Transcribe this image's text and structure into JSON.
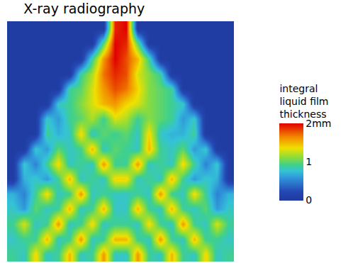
{
  "chart_data": {
    "type": "heatmap",
    "title": "X-ray radiography",
    "tick_labels": false,
    "cells": [
      [
        0.05,
        0.05,
        0.05,
        0.05,
        0.05,
        0.05,
        0.05,
        0.05,
        0.05,
        1.9,
        2.0,
        0.05,
        0.05,
        0.05,
        0.05,
        0.05,
        0.05,
        0.05,
        0.05,
        0.05
      ],
      [
        0.05,
        0.05,
        0.05,
        0.05,
        0.05,
        0.05,
        0.05,
        0.05,
        1.0,
        2.0,
        1.9,
        1.0,
        0.05,
        0.05,
        0.05,
        0.05,
        0.05,
        0.05,
        0.05,
        0.05
      ],
      [
        0.05,
        0.05,
        0.05,
        0.05,
        0.05,
        0.05,
        0.05,
        0.9,
        1.6,
        2.0,
        1.8,
        1.5,
        0.9,
        0.05,
        0.05,
        0.05,
        0.05,
        0.05,
        0.05,
        0.05
      ],
      [
        0.05,
        0.05,
        0.05,
        0.05,
        0.05,
        0.05,
        0.9,
        1.2,
        1.7,
        1.9,
        1.8,
        1.3,
        1.1,
        0.9,
        0.05,
        0.05,
        0.05,
        0.05,
        0.05,
        0.05
      ],
      [
        0.05,
        0.05,
        0.05,
        0.05,
        0.05,
        0.9,
        1.0,
        1.3,
        1.6,
        1.8,
        1.7,
        1.4,
        1.1,
        1.0,
        0.9,
        0.05,
        0.05,
        0.05,
        0.05,
        0.05
      ],
      [
        0.05,
        0.05,
        0.05,
        0.05,
        0.8,
        0.9,
        1.1,
        1.3,
        1.5,
        1.6,
        1.4,
        1.3,
        1.1,
        1.0,
        0.9,
        0.8,
        0.05,
        0.05,
        0.05,
        0.05
      ],
      [
        0.05,
        0.05,
        0.05,
        0.8,
        0.6,
        0.9,
        1.0,
        1.2,
        0.9,
        1.3,
        1.2,
        0.9,
        1.1,
        1.0,
        0.9,
        0.6,
        0.8,
        0.05,
        0.05,
        0.05
      ],
      [
        0.05,
        0.05,
        0.05,
        0.9,
        0.7,
        0.8,
        1.4,
        0.8,
        1.0,
        0.9,
        1.0,
        0.8,
        1.4,
        0.8,
        0.7,
        0.7,
        0.9,
        0.05,
        0.05,
        0.05
      ],
      [
        0.05,
        0.05,
        0.8,
        0.6,
        1.0,
        0.8,
        0.9,
        1.5,
        0.8,
        1.0,
        0.9,
        0.8,
        1.5,
        0.9,
        0.8,
        1.0,
        0.6,
        0.8,
        0.05,
        0.05
      ],
      [
        0.05,
        0.8,
        0.5,
        0.9,
        1.4,
        0.8,
        0.9,
        0.8,
        1.6,
        0.9,
        0.9,
        1.6,
        0.8,
        0.9,
        0.8,
        1.4,
        0.9,
        0.5,
        0.8,
        0.05
      ],
      [
        0.05,
        0.7,
        0.8,
        0.6,
        0.9,
        1.5,
        0.8,
        0.9,
        0.8,
        1.4,
        1.4,
        0.8,
        0.9,
        0.8,
        1.5,
        0.9,
        0.6,
        0.8,
        0.7,
        0.05
      ],
      [
        0.7,
        0.5,
        0.9,
        1.4,
        0.8,
        0.9,
        1.6,
        0.8,
        0.9,
        0.8,
        0.8,
        0.9,
        0.8,
        1.6,
        0.9,
        0.8,
        1.4,
        0.9,
        0.5,
        0.7
      ],
      [
        0.8,
        0.6,
        1.0,
        0.8,
        0.9,
        1.5,
        0.8,
        0.9,
        1.5,
        0.8,
        0.8,
        1.5,
        0.9,
        0.8,
        1.5,
        0.9,
        0.8,
        1.0,
        0.6,
        0.8
      ],
      [
        0.9,
        1.3,
        0.8,
        0.9,
        1.6,
        0.8,
        0.9,
        1.4,
        0.8,
        0.9,
        0.9,
        0.8,
        1.4,
        0.9,
        0.8,
        1.6,
        0.9,
        0.8,
        1.3,
        0.9
      ],
      [
        0.8,
        0.9,
        0.9,
        1.5,
        0.8,
        0.9,
        1.6,
        0.8,
        0.9,
        1.5,
        1.5,
        0.9,
        0.8,
        1.6,
        0.9,
        0.8,
        1.5,
        0.9,
        0.9,
        0.8
      ],
      [
        0.9,
        0.8,
        1.4,
        0.8,
        0.9,
        1.5,
        0.8,
        0.9,
        1.6,
        0.8,
        0.8,
        1.6,
        0.9,
        0.8,
        1.5,
        0.9,
        0.8,
        1.4,
        0.8,
        0.9
      ]
    ],
    "colorbar": {
      "title": [
        "integral",
        "liquid film",
        "thickness"
      ],
      "range": [
        0,
        2
      ],
      "ticks": [
        {
          "value": 2,
          "label": "2mm"
        },
        1,
        0
      ]
    }
  }
}
